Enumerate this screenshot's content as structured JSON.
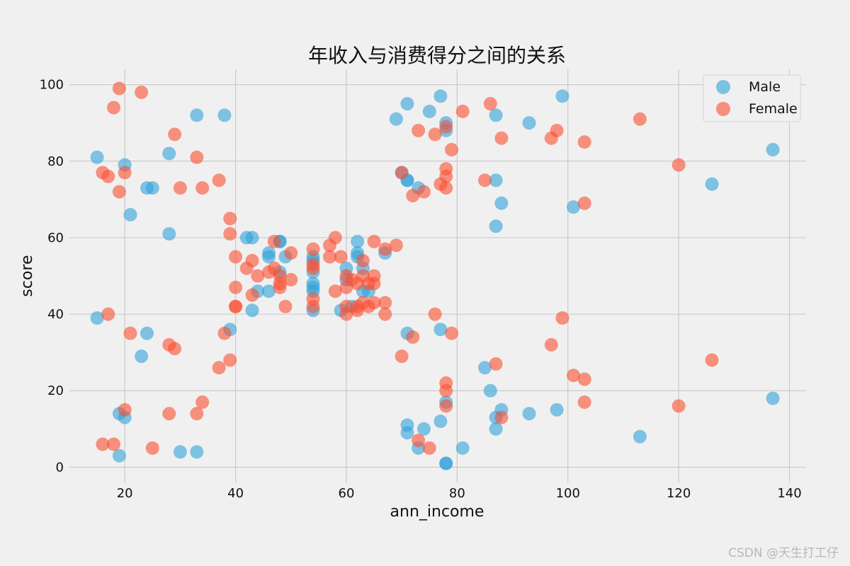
{
  "chart_data": {
    "type": "scatter",
    "title": "年收入与消费得分之间的关系",
    "xlabel": "ann_income",
    "ylabel": "score",
    "xlim": [
      10,
      143
    ],
    "ylim": [
      -4,
      104
    ],
    "xticks": [
      20,
      40,
      60,
      80,
      100,
      120,
      140
    ],
    "yticks": [
      0,
      20,
      40,
      60,
      80,
      100
    ],
    "grid": true,
    "legend_position": "top-right",
    "series": [
      {
        "name": "Male",
        "color": "#30a2da",
        "points": [
          [
            15,
            81
          ],
          [
            15,
            39
          ],
          [
            19,
            14
          ],
          [
            19,
            3
          ],
          [
            20,
            79
          ],
          [
            20,
            13
          ],
          [
            21,
            66
          ],
          [
            23,
            29
          ],
          [
            24,
            73
          ],
          [
            24,
            35
          ],
          [
            25,
            73
          ],
          [
            28,
            82
          ],
          [
            28,
            61
          ],
          [
            30,
            4
          ],
          [
            33,
            92
          ],
          [
            33,
            4
          ],
          [
            38,
            92
          ],
          [
            39,
            36
          ],
          [
            42,
            60
          ],
          [
            43,
            60
          ],
          [
            43,
            41
          ],
          [
            44,
            46
          ],
          [
            46,
            56
          ],
          [
            46,
            55
          ],
          [
            46,
            46
          ],
          [
            48,
            59
          ],
          [
            48,
            59
          ],
          [
            48,
            51
          ],
          [
            49,
            55
          ],
          [
            54,
            55
          ],
          [
            54,
            54
          ],
          [
            54,
            51
          ],
          [
            54,
            48
          ],
          [
            54,
            47
          ],
          [
            54,
            46
          ],
          [
            54,
            41
          ],
          [
            59,
            41
          ],
          [
            60,
            52
          ],
          [
            60,
            49
          ],
          [
            61,
            42
          ],
          [
            62,
            59
          ],
          [
            62,
            56
          ],
          [
            62,
            55
          ],
          [
            63,
            52
          ],
          [
            63,
            46
          ],
          [
            64,
            46
          ],
          [
            67,
            56
          ],
          [
            69,
            91
          ],
          [
            70,
            77
          ],
          [
            71,
            95
          ],
          [
            71,
            75
          ],
          [
            71,
            75
          ],
          [
            71,
            35
          ],
          [
            71,
            11
          ],
          [
            71,
            9
          ],
          [
            73,
            73
          ],
          [
            73,
            5
          ],
          [
            74,
            10
          ],
          [
            75,
            93
          ],
          [
            77,
            97
          ],
          [
            77,
            36
          ],
          [
            77,
            12
          ],
          [
            78,
            90
          ],
          [
            78,
            88
          ],
          [
            78,
            17
          ],
          [
            78,
            1
          ],
          [
            78,
            1
          ],
          [
            81,
            5
          ],
          [
            85,
            26
          ],
          [
            86,
            20
          ],
          [
            87,
            92
          ],
          [
            87,
            75
          ],
          [
            87,
            63
          ],
          [
            87,
            13
          ],
          [
            87,
            10
          ],
          [
            88,
            69
          ],
          [
            88,
            15
          ],
          [
            93,
            90
          ],
          [
            93,
            14
          ],
          [
            98,
            15
          ],
          [
            99,
            97
          ],
          [
            101,
            68
          ],
          [
            113,
            8
          ],
          [
            126,
            74
          ],
          [
            137,
            83
          ],
          [
            137,
            18
          ]
        ]
      },
      {
        "name": "Female",
        "color": "#fc4f30",
        "points": [
          [
            16,
            6
          ],
          [
            16,
            77
          ],
          [
            17,
            40
          ],
          [
            17,
            76
          ],
          [
            18,
            94
          ],
          [
            18,
            6
          ],
          [
            19,
            99
          ],
          [
            19,
            72
          ],
          [
            20,
            77
          ],
          [
            20,
            15
          ],
          [
            21,
            35
          ],
          [
            23,
            98
          ],
          [
            25,
            5
          ],
          [
            28,
            14
          ],
          [
            28,
            32
          ],
          [
            29,
            87
          ],
          [
            29,
            31
          ],
          [
            30,
            73
          ],
          [
            33,
            81
          ],
          [
            33,
            14
          ],
          [
            34,
            73
          ],
          [
            34,
            17
          ],
          [
            37,
            26
          ],
          [
            37,
            75
          ],
          [
            38,
            35
          ],
          [
            39,
            65
          ],
          [
            39,
            61
          ],
          [
            39,
            28
          ],
          [
            40,
            55
          ],
          [
            40,
            47
          ],
          [
            40,
            42
          ],
          [
            40,
            42
          ],
          [
            42,
            52
          ],
          [
            43,
            54
          ],
          [
            43,
            45
          ],
          [
            44,
            50
          ],
          [
            46,
            51
          ],
          [
            47,
            59
          ],
          [
            47,
            52
          ],
          [
            48,
            50
          ],
          [
            48,
            48
          ],
          [
            48,
            47
          ],
          [
            49,
            42
          ],
          [
            50,
            49
          ],
          [
            50,
            56
          ],
          [
            54,
            57
          ],
          [
            54,
            53
          ],
          [
            54,
            52
          ],
          [
            54,
            44
          ],
          [
            54,
            42
          ],
          [
            57,
            58
          ],
          [
            57,
            55
          ],
          [
            58,
            60
          ],
          [
            58,
            46
          ],
          [
            59,
            55
          ],
          [
            60,
            50
          ],
          [
            60,
            47
          ],
          [
            60,
            42
          ],
          [
            60,
            40
          ],
          [
            61,
            49
          ],
          [
            62,
            42
          ],
          [
            62,
            41
          ],
          [
            62,
            48
          ],
          [
            63,
            54
          ],
          [
            63,
            50
          ],
          [
            63,
            43
          ],
          [
            64,
            42
          ],
          [
            64,
            48
          ],
          [
            65,
            59
          ],
          [
            65,
            50
          ],
          [
            65,
            48
          ],
          [
            65,
            43
          ],
          [
            67,
            57
          ],
          [
            67,
            43
          ],
          [
            67,
            40
          ],
          [
            69,
            58
          ],
          [
            70,
            77
          ],
          [
            70,
            29
          ],
          [
            72,
            71
          ],
          [
            72,
            34
          ],
          [
            73,
            88
          ],
          [
            73,
            7
          ],
          [
            74,
            72
          ],
          [
            75,
            5
          ],
          [
            76,
            87
          ],
          [
            76,
            40
          ],
          [
            77,
            74
          ],
          [
            78,
            89
          ],
          [
            78,
            78
          ],
          [
            78,
            76
          ],
          [
            78,
            73
          ],
          [
            78,
            22
          ],
          [
            78,
            20
          ],
          [
            78,
            16
          ],
          [
            79,
            83
          ],
          [
            79,
            35
          ],
          [
            81,
            93
          ],
          [
            85,
            75
          ],
          [
            86,
            95
          ],
          [
            87,
            27
          ],
          [
            88,
            86
          ],
          [
            88,
            13
          ],
          [
            97,
            86
          ],
          [
            97,
            32
          ],
          [
            98,
            88
          ],
          [
            99,
            39
          ],
          [
            101,
            24
          ],
          [
            103,
            85
          ],
          [
            103,
            69
          ],
          [
            103,
            23
          ],
          [
            103,
            17
          ],
          [
            113,
            91
          ],
          [
            120,
            79
          ],
          [
            120,
            16
          ],
          [
            126,
            28
          ]
        ]
      }
    ]
  },
  "watermark": "CSDN @天生打工仔"
}
